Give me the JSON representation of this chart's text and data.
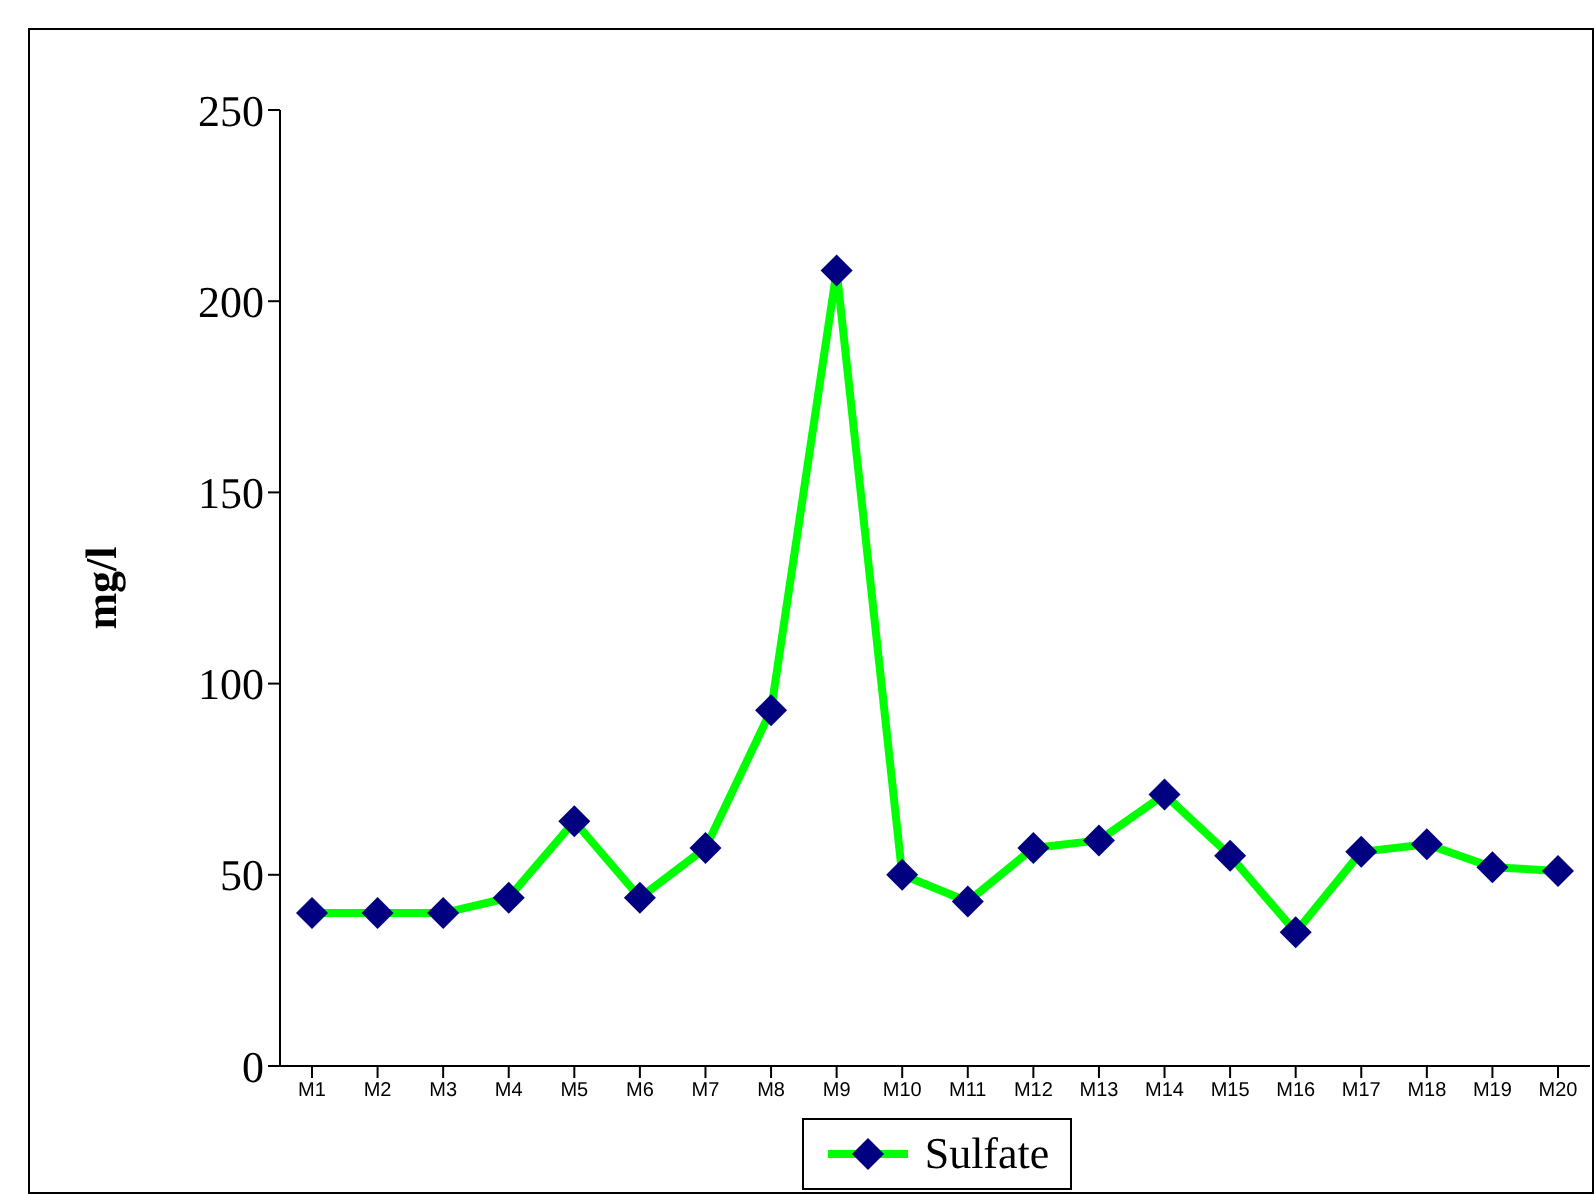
{
  "chart_data": {
    "type": "line",
    "ylabel": "mg/l",
    "categories": [
      "M1",
      "M2",
      "M3",
      "M4",
      "M5",
      "M6",
      "M7",
      "M8",
      "M9",
      "M10",
      "M11",
      "M12",
      "M13",
      "M14",
      "M15",
      "M16",
      "M17",
      "M18",
      "M19",
      "M20"
    ],
    "series": [
      {
        "name": "Sulfate",
        "color": "#00ff00",
        "colors": [
          "#000080",
          "#000080",
          "#000080",
          "#000080",
          "#000080",
          "#000080",
          "#000080",
          "#000080",
          "#000080",
          "#000080",
          "#000080",
          "#000080",
          "#000080",
          "#000080",
          "#000080",
          "#000080",
          "#000080",
          "#000080",
          "#000080",
          "#000080"
        ],
        "values": [
          40,
          40,
          40,
          44,
          64,
          44,
          57,
          93,
          208,
          50,
          43,
          57,
          59,
          71,
          55,
          35,
          56,
          58,
          52,
          51
        ]
      }
    ],
    "ylim": [
      0,
      250
    ],
    "yticks": [
      0,
      50,
      100,
      150,
      200,
      250
    ],
    "marker": "diamond",
    "line_style": "solid",
    "legend": "bottom",
    "grid": false
  }
}
